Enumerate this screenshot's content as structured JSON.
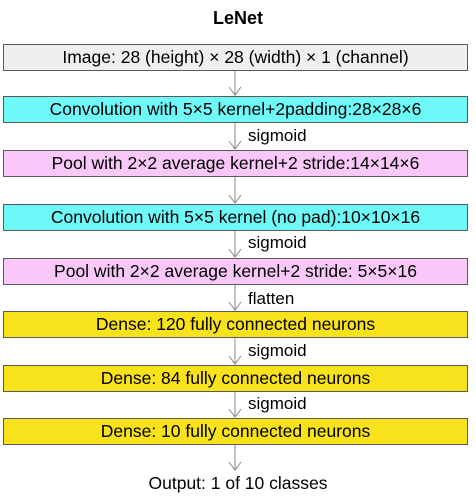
{
  "title": "LeNet",
  "layers": {
    "input": "Image: 28 (height) × 28 (width) × 1 (channel)",
    "conv1": "Convolution with 5×5 kernel+2padding:28×28×6",
    "pool1": "Pool with 2×2 average kernel+2 stride:14×14×6",
    "conv2": "Convolution with 5×5 kernel (no pad):10×10×16",
    "pool2": "Pool with 2×2 average kernel+2 stride: 5×5×16",
    "dense1": "Dense: 120 fully connected neurons",
    "dense2": "Dense: 84 fully connected neurons",
    "dense3": "Dense: 10 fully connected neurons"
  },
  "transitions": {
    "conv1_to_pool1": "sigmoid",
    "conv2_to_pool2": "sigmoid",
    "pool2_to_dense1": "flatten",
    "dense1_to_dense2": "sigmoid",
    "dense2_to_dense3": "sigmoid"
  },
  "output": "Output: 1 of 10 classes",
  "colors": {
    "input": "#efefef",
    "convolution": "#6ef8f8",
    "pooling": "#f9c8f8",
    "dense": "#f8e21c",
    "arrow": "#888888"
  }
}
